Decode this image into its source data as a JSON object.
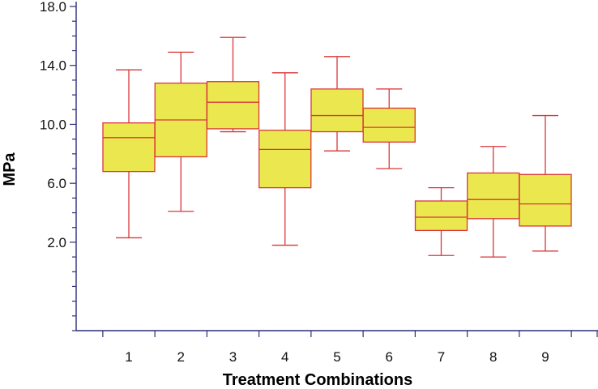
{
  "chart_data": {
    "type": "boxplot",
    "title": "",
    "xlabel": "Treatment Combinations",
    "ylabel": "MPa",
    "ylim": [
      -4,
      18
    ],
    "y_tick_labels": [
      "2.0",
      "6.0",
      "10.0",
      "14.0",
      "18.0"
    ],
    "y_major_ticks": [
      2,
      6,
      10,
      14,
      18
    ],
    "y_minor_ticks": [
      -4,
      -3,
      -2,
      -1,
      0,
      1,
      2,
      3,
      4,
      5,
      6,
      7,
      8,
      9,
      10,
      11,
      12,
      13,
      14,
      15,
      16,
      17,
      18
    ],
    "grid": false,
    "categories": [
      "1",
      "2",
      "3",
      "4",
      "5",
      "6",
      "7",
      "8",
      "9"
    ],
    "boxes": [
      {
        "category": "1",
        "min": 2.3,
        "q1": 6.8,
        "median": 9.1,
        "q3": 10.1,
        "max": 13.7
      },
      {
        "category": "2",
        "min": 4.1,
        "q1": 7.8,
        "median": 10.3,
        "q3": 12.8,
        "max": 14.9
      },
      {
        "category": "3",
        "min": 9.5,
        "q1": 9.7,
        "median": 11.5,
        "q3": 12.9,
        "max": 15.9
      },
      {
        "category": "4",
        "min": 1.8,
        "q1": 5.7,
        "median": 8.3,
        "q3": 9.6,
        "max": 13.5
      },
      {
        "category": "5",
        "min": 8.2,
        "q1": 9.5,
        "median": 10.6,
        "q3": 12.4,
        "max": 14.6
      },
      {
        "category": "6",
        "min": 7.0,
        "q1": 8.8,
        "median": 9.8,
        "q3": 11.1,
        "max": 12.4
      },
      {
        "category": "7",
        "min": 1.1,
        "q1": 2.8,
        "median": 3.7,
        "q3": 4.8,
        "max": 5.7
      },
      {
        "category": "8",
        "min": 1.0,
        "q1": 3.6,
        "median": 4.9,
        "q3": 6.7,
        "max": 8.5
      },
      {
        "category": "9",
        "min": 1.4,
        "q1": 3.1,
        "median": 4.6,
        "q3": 6.6,
        "max": 10.6
      }
    ],
    "box_fill": "#ebe84f",
    "box_stroke": "#d9373a",
    "axis_color": "#2b2f7a"
  }
}
